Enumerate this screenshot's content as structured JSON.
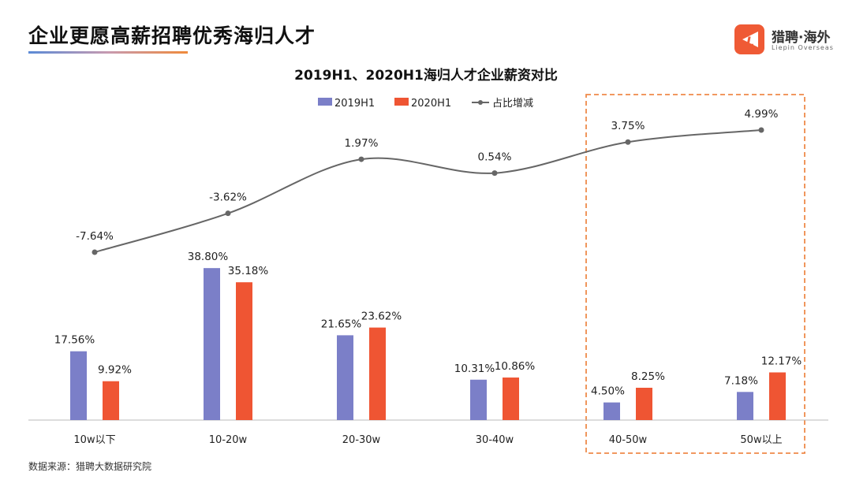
{
  "header": {
    "title": "企业更愿高薪招聘优秀海归人才",
    "logo_cn": "猎聘·海外",
    "logo_en": "Liepin Overseas"
  },
  "source": "数据来源：猎聘大数据研究院",
  "colors": {
    "blue": "#7b7fc8",
    "red": "#ef5533",
    "line": "#666666",
    "highlight": "#ef8a4a"
  },
  "chart_data": {
    "type": "bar+line",
    "title": "2019H1、2020H1海归人才企业薪资对比",
    "categories": [
      "10w以下",
      "10-20w",
      "20-30w",
      "30-40w",
      "40-50w",
      "50w以上"
    ],
    "series": [
      {
        "name": "2019H1",
        "type": "bar",
        "values": [
          17.56,
          38.8,
          21.65,
          10.31,
          4.5,
          7.18
        ],
        "labels": [
          "17.56%",
          "38.80%",
          "21.65%",
          "10.31%",
          "4.50%",
          "7.18%"
        ]
      },
      {
        "name": "2020H1",
        "type": "bar",
        "values": [
          9.92,
          35.18,
          23.62,
          10.86,
          8.25,
          12.17
        ],
        "labels": [
          "9.92%",
          "35.18%",
          "23.62%",
          "10.86%",
          "8.25%",
          "12.17%"
        ]
      },
      {
        "name": "占比增减",
        "type": "line",
        "values": [
          -7.64,
          -3.62,
          1.97,
          0.54,
          3.75,
          4.99
        ],
        "labels": [
          "-7.64%",
          "-3.62%",
          "1.97%",
          "0.54%",
          "3.75%",
          "4.99%"
        ]
      }
    ],
    "legend": "top",
    "highlighted_categories": [
      "40-50w",
      "50w以上"
    ]
  }
}
